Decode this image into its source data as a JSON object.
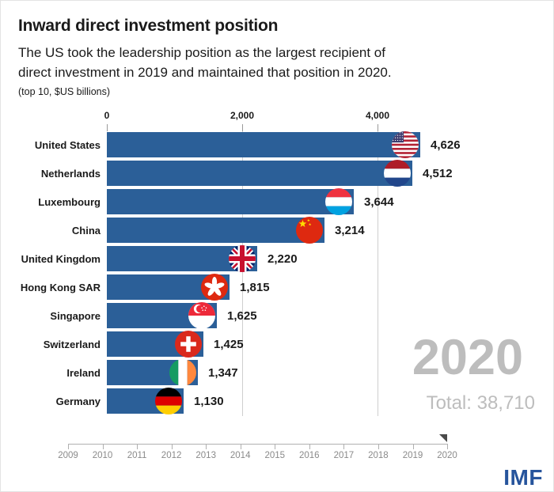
{
  "chart_data": {
    "type": "bar",
    "orientation": "horizontal",
    "title": "Inward direct investment position",
    "subtitle_lines": [
      "The US took the leadership position as the largest recipient of",
      "direct investment in 2019 and maintained that position in 2020."
    ],
    "subtitle": "The US took the leadership position as the largest recipient of direct investment in 2019 and maintained that position in 2020.",
    "unit_note": "(top 10, $US billions)",
    "categories": [
      "United States",
      "Netherlands",
      "Luxembourg",
      "China",
      "United Kingdom",
      "Hong Kong SAR",
      "Singapore",
      "Switzerland",
      "Ireland",
      "Germany"
    ],
    "values": [
      4626,
      4512,
      3644,
      3214,
      2220,
      1815,
      1625,
      1425,
      1347,
      1130
    ],
    "value_labels": [
      "4,626",
      "4,512",
      "3,644",
      "3,214",
      "2,220",
      "1,815",
      "1,625",
      "1,425",
      "1,347",
      "1,130"
    ],
    "flags": [
      "us",
      "nl",
      "lu",
      "cn",
      "uk",
      "hk",
      "sg",
      "ch",
      "ie",
      "de"
    ],
    "xlim": [
      0,
      5000
    ],
    "x_ticks": [
      0,
      2000,
      4000
    ],
    "x_tick_labels": [
      "0",
      "2,000",
      "4,000"
    ],
    "grid": "vertical gridlines at 2,000 and 4,000",
    "legend": "none",
    "frame_year": "2020",
    "total": 38710,
    "total_label": "Total: 38,710",
    "timeline_years": [
      "2009",
      "2010",
      "2011",
      "2012",
      "2013",
      "2014",
      "2015",
      "2016",
      "2017",
      "2018",
      "2019",
      "2020"
    ],
    "timeline_selected": "2020"
  },
  "branding": {
    "logo": "IMF"
  },
  "colors": {
    "bar": "#2B5F98",
    "text": "#1a1a1a",
    "gridline": "#cfcfcf",
    "watermark": "#bdbdbd",
    "timeline": "#b0b0b0",
    "timeline_label": "#8a8a8a",
    "logo_blue": "#26549C"
  }
}
